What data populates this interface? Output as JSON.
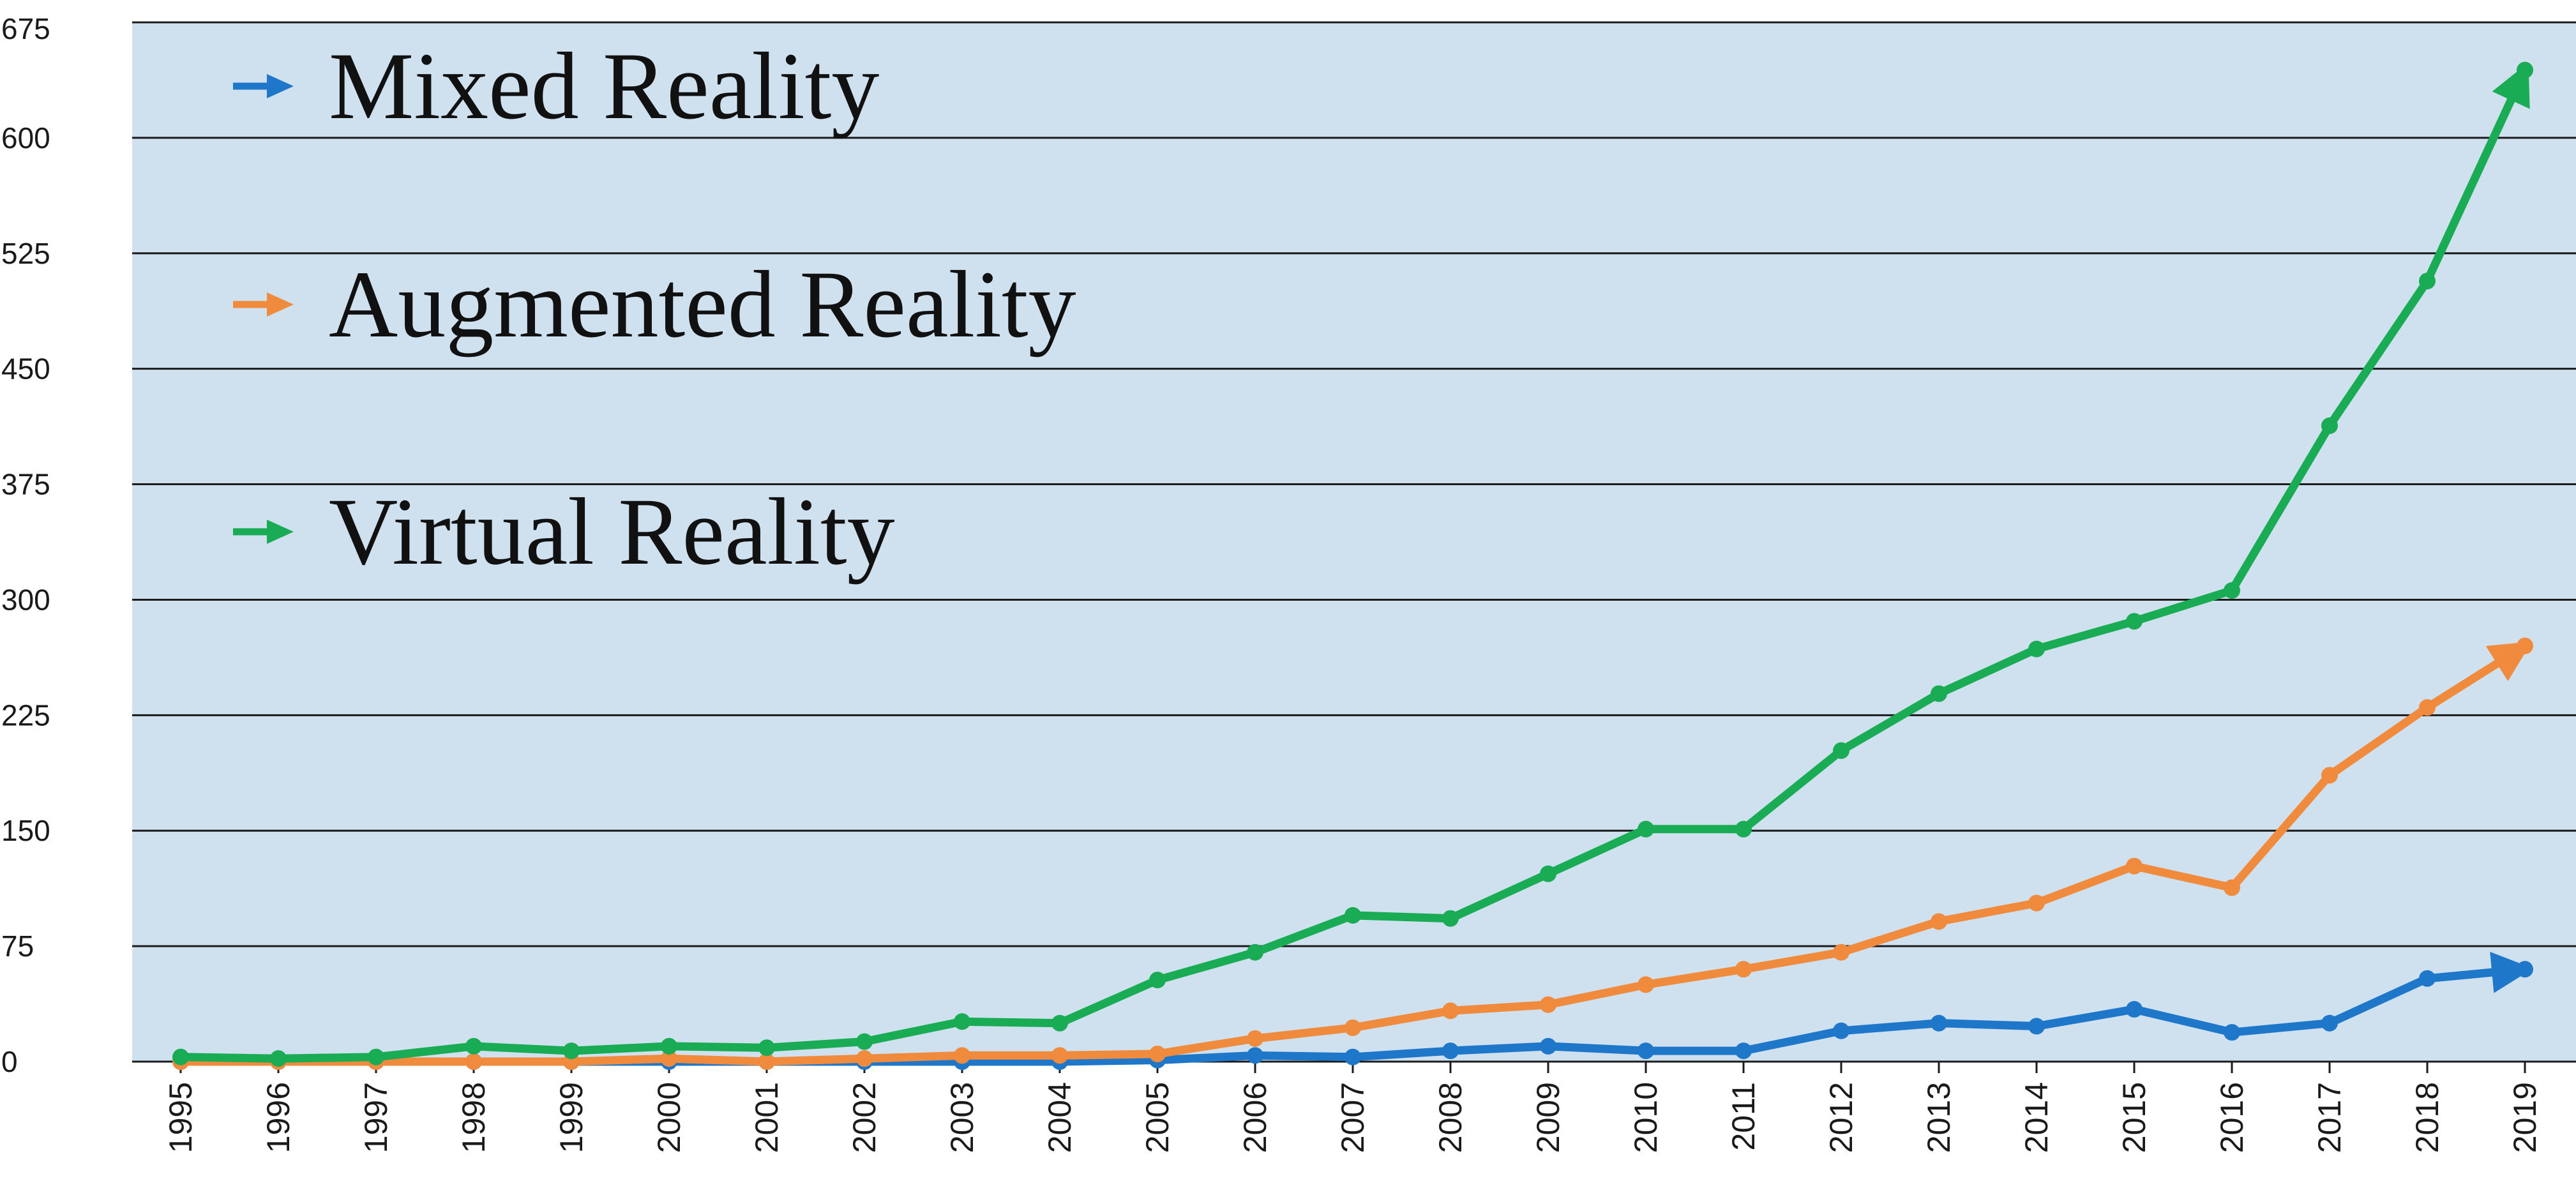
{
  "chart_data": {
    "type": "line",
    "title": "",
    "xlabel": "",
    "ylabel": "",
    "x": [
      "1995",
      "1996",
      "1997",
      "1998",
      "1999",
      "2000",
      "2001",
      "2002",
      "2003",
      "2004",
      "2005",
      "2006",
      "2007",
      "2008",
      "2009",
      "2010",
      "2011",
      "2012",
      "2013",
      "2014",
      "2015",
      "2016",
      "2017",
      "2018",
      "2019"
    ],
    "ylim": [
      0,
      675
    ],
    "yticks": [
      0,
      75,
      150,
      225,
      300,
      375,
      450,
      525,
      600,
      675
    ],
    "grid": true,
    "legend_position": "top-left",
    "background_color": "#cfe0ef",
    "series": [
      {
        "name": "Mixed Reality",
        "color": "#1f77c9",
        "values": [
          0,
          0,
          0,
          0,
          0,
          0,
          0,
          0,
          0,
          0,
          1,
          4,
          3,
          7,
          10,
          7,
          7,
          20,
          25,
          23,
          34,
          19,
          25,
          54,
          60
        ]
      },
      {
        "name": "Augmented Reality",
        "color": "#f08a3c",
        "values": [
          0,
          0,
          0,
          0,
          0,
          2,
          0,
          2,
          4,
          4,
          5,
          15,
          22,
          33,
          37,
          50,
          60,
          71,
          91,
          103,
          127,
          113,
          186,
          230,
          270
        ]
      },
      {
        "name": "Virtual Reality",
        "color": "#1aab55",
        "values": [
          3,
          2,
          3,
          10,
          7,
          10,
          9,
          13,
          26,
          25,
          53,
          71,
          95,
          93,
          122,
          151,
          151,
          202,
          239,
          268,
          286,
          306,
          413,
          507,
          644
        ]
      }
    ]
  }
}
